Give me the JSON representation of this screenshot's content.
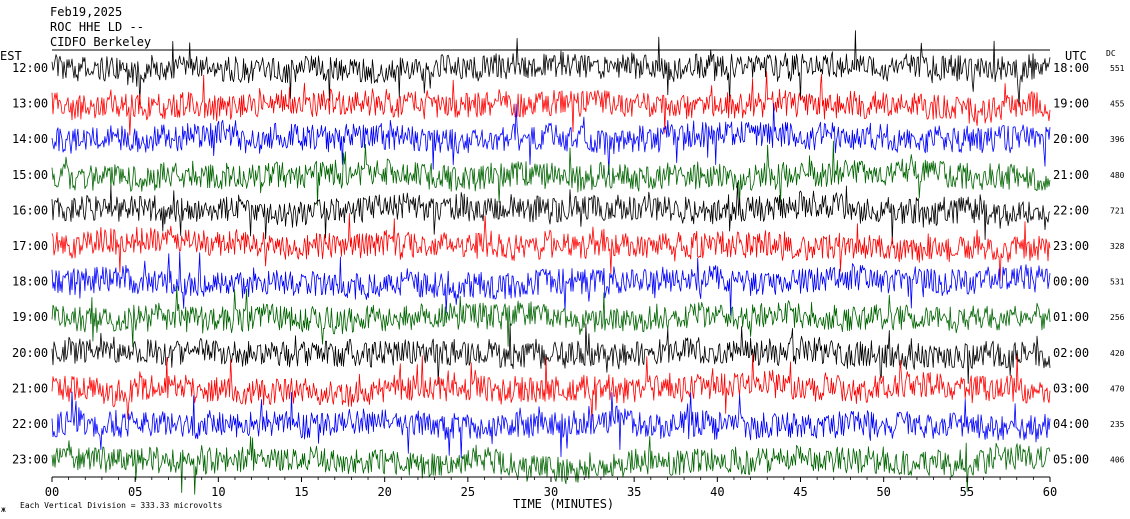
{
  "header": {
    "date": "Feb19,2025",
    "station": "ROC HHE LD --",
    "source": "CIDFO Berkeley"
  },
  "axes": {
    "left_title": "EST",
    "right_title": "UTC",
    "dc_title": "DC",
    "x_title": "TIME (MINUTES)",
    "x_ticks": [
      "00",
      "05",
      "10",
      "15",
      "20",
      "25",
      "30",
      "35",
      "40",
      "45",
      "50",
      "55",
      "60"
    ]
  },
  "footer": {
    "glyph": "ж",
    "scale_text": "Each Vertical Division =  333.33 microvolts"
  },
  "colors": {
    "background": "#ffffff",
    "trace_cycle": [
      "#000000",
      "#ff0000",
      "#0000ff",
      "#006400"
    ]
  },
  "chart_data": {
    "type": "line",
    "x_range_minutes": [
      0,
      60
    ],
    "x_unit": "minutes",
    "rows": [
      {
        "est": "12:00",
        "utc": "18:00",
        "dc": "551",
        "color": "#000000"
      },
      {
        "est": "13:00",
        "utc": "19:00",
        "dc": "455",
        "color": "#ff0000"
      },
      {
        "est": "14:00",
        "utc": "20:00",
        "dc": "396",
        "color": "#0000ff"
      },
      {
        "est": "15:00",
        "utc": "21:00",
        "dc": "480",
        "color": "#006400"
      },
      {
        "est": "16:00",
        "utc": "22:00",
        "dc": "721",
        "color": "#000000"
      },
      {
        "est": "17:00",
        "utc": "23:00",
        "dc": "328",
        "color": "#ff0000"
      },
      {
        "est": "18:00",
        "utc": "00:00",
        "dc": "531",
        "color": "#0000ff"
      },
      {
        "est": "19:00",
        "utc": "01:00",
        "dc": "256",
        "color": "#006400"
      },
      {
        "est": "20:00",
        "utc": "02:00",
        "dc": "420",
        "color": "#000000"
      },
      {
        "est": "21:00",
        "utc": "03:00",
        "dc": "470",
        "color": "#ff0000"
      },
      {
        "est": "22:00",
        "utc": "04:00",
        "dc": "235",
        "color": "#0000ff"
      },
      {
        "est": "23:00",
        "utc": "05:00",
        "dc": "406",
        "color": "#006400"
      }
    ]
  }
}
